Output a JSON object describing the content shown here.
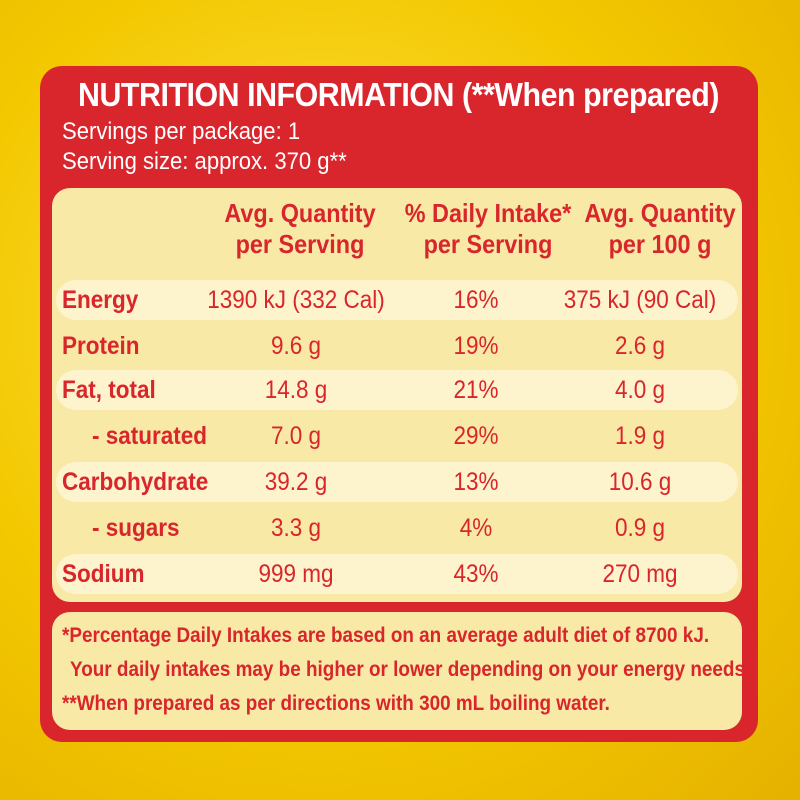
{
  "title": "NUTRITION INFORMATION (**When prepared)",
  "servings_per_package": "Servings per package: 1",
  "serving_size": "Serving size: approx. 370 g**",
  "headers": {
    "col1": [
      "Avg. Quantity",
      "per Serving"
    ],
    "col2": [
      "% Daily Intake*",
      "per Serving"
    ],
    "col3": [
      "Avg. Quantity",
      "per 100 g"
    ]
  },
  "rows": [
    {
      "label": "Energy",
      "per_serving": "1390 kJ (332 Cal)",
      "daily_intake": "16%",
      "per_100g": "375 kJ (90 Cal)"
    },
    {
      "label": "Protein",
      "per_serving": "9.6 g",
      "daily_intake": "19%",
      "per_100g": "2.6 g"
    },
    {
      "label": "Fat, total",
      "per_serving": "14.8 g",
      "daily_intake": "21%",
      "per_100g": "4.0 g"
    },
    {
      "label": "- saturated",
      "per_serving": "7.0 g",
      "daily_intake": "29%",
      "per_100g": "1.9 g"
    },
    {
      "label": "Carbohydrate",
      "per_serving": "39.2 g",
      "daily_intake": "13%",
      "per_100g": "10.6 g"
    },
    {
      "label": "- sugars",
      "per_serving": "3.3 g",
      "daily_intake": "4%",
      "per_100g": "0.9 g"
    },
    {
      "label": "Sodium",
      "per_serving": "999 mg",
      "daily_intake": "43%",
      "per_100g": "270 mg"
    }
  ],
  "footnotes": [
    "*Percentage Daily Intakes are based on an average adult diet of 8700 kJ.",
    "Your daily intakes may be higher or lower depending on your energy needs.",
    "**When prepared as per directions with 300 mL boiling water."
  ],
  "colors": {
    "panel": "#d9252c",
    "table_bg": "#f8e9a6",
    "stripe": "#fdf3cd",
    "package": "#f2c400"
  }
}
